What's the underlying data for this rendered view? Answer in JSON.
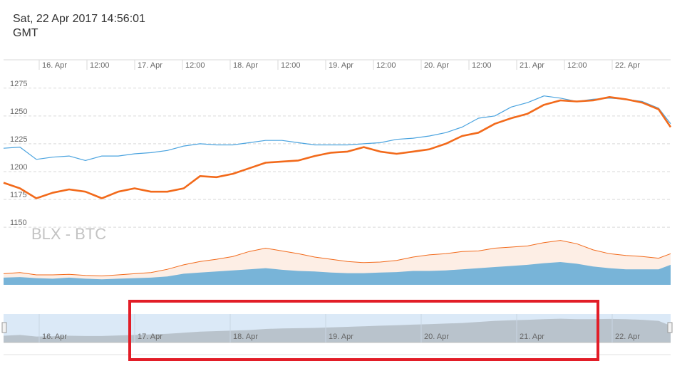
{
  "header": {
    "datetime": "Sat, 22 Apr 2017 14:56:01",
    "timezone": "GMT"
  },
  "colors": {
    "blx_line": "#f26a1b",
    "btc_line": "#4aa3df",
    "volume_orange_fill": "#fdeee5",
    "volume_orange_line": "#f26a1b",
    "volume_blue_fill": "#78b4d8",
    "navigator_fill": "#b9c3cc",
    "navigator_bg": "#dbe9f7",
    "highlight_box": "#e21d27",
    "grid": "#d9d9d9"
  },
  "chart_data": {
    "type": "line",
    "title": "BLX - BTC",
    "x_axis_labels": [
      "16. Apr",
      "12:00",
      "17. Apr",
      "12:00",
      "18. Apr",
      "12:00",
      "19. Apr",
      "12:00",
      "20. Apr",
      "12:00",
      "21. Apr",
      "12:00",
      "22. Apr"
    ],
    "navigator_labels": [
      "16. Apr",
      "17. Apr",
      "18. Apr",
      "19. Apr",
      "20. Apr",
      "21. Apr",
      "22. Apr"
    ],
    "y_ticks": [
      1150,
      1175,
      1200,
      1225,
      1250,
      1275
    ],
    "ylim": [
      1145,
      1287
    ],
    "x": [
      "2017-04-15 20:00",
      "2017-04-16 00:00",
      "2017-04-16 04:00",
      "2017-04-16 08:00",
      "2017-04-16 12:00",
      "2017-04-16 16:00",
      "2017-04-16 20:00",
      "2017-04-17 00:00",
      "2017-04-17 04:00",
      "2017-04-17 08:00",
      "2017-04-17 12:00",
      "2017-04-17 16:00",
      "2017-04-17 20:00",
      "2017-04-18 00:00",
      "2017-04-18 04:00",
      "2017-04-18 08:00",
      "2017-04-18 12:00",
      "2017-04-18 16:00",
      "2017-04-18 20:00",
      "2017-04-19 00:00",
      "2017-04-19 04:00",
      "2017-04-19 08:00",
      "2017-04-19 12:00",
      "2017-04-19 16:00",
      "2017-04-19 20:00",
      "2017-04-20 00:00",
      "2017-04-20 04:00",
      "2017-04-20 08:00",
      "2017-04-20 12:00",
      "2017-04-20 16:00",
      "2017-04-20 20:00",
      "2017-04-21 00:00",
      "2017-04-21 04:00",
      "2017-04-21 08:00",
      "2017-04-21 12:00",
      "2017-04-21 16:00",
      "2017-04-21 20:00",
      "2017-04-22 00:00",
      "2017-04-22 04:00",
      "2017-04-22 08:00",
      "2017-04-22 12:00",
      "2017-04-22 14:56"
    ],
    "series": [
      {
        "name": "BLX",
        "values": [
          1190,
          1185,
          1176,
          1181,
          1184,
          1182,
          1176,
          1182,
          1185,
          1182,
          1182,
          1185,
          1196,
          1195,
          1198,
          1203,
          1208,
          1209,
          1210,
          1214,
          1217,
          1218,
          1222,
          1218,
          1216,
          1218,
          1220,
          1225,
          1232,
          1235,
          1243,
          1248,
          1252,
          1260,
          1264,
          1263,
          1264,
          1267,
          1265,
          1262,
          1256,
          1240
        ]
      },
      {
        "name": "BTC",
        "values": [
          1221,
          1222,
          1211,
          1213,
          1214,
          1210,
          1214,
          1214,
          1216,
          1217,
          1219,
          1223,
          1225,
          1224,
          1224,
          1226,
          1228,
          1228,
          1226,
          1224,
          1224,
          1224,
          1225,
          1226,
          1229,
          1230,
          1232,
          1235,
          1240,
          1248,
          1250,
          1258,
          1262,
          1268,
          1266,
          1263,
          1265,
          1266,
          1265,
          1263,
          1257,
          1243
        ]
      }
    ],
    "volume_orange_rel": [
      0.2,
      0.22,
      0.18,
      0.18,
      0.19,
      0.17,
      0.16,
      0.18,
      0.2,
      0.22,
      0.28,
      0.36,
      0.42,
      0.46,
      0.51,
      0.6,
      0.66,
      0.61,
      0.56,
      0.5,
      0.46,
      0.42,
      0.4,
      0.41,
      0.44,
      0.5,
      0.54,
      0.56,
      0.6,
      0.61,
      0.66,
      0.68,
      0.7,
      0.76,
      0.8,
      0.74,
      0.63,
      0.56,
      0.53,
      0.51,
      0.48,
      0.56
    ],
    "volume_blue_rel": [
      0.13,
      0.14,
      0.12,
      0.11,
      0.13,
      0.11,
      0.1,
      0.11,
      0.12,
      0.13,
      0.15,
      0.2,
      0.22,
      0.24,
      0.26,
      0.28,
      0.3,
      0.27,
      0.25,
      0.24,
      0.22,
      0.21,
      0.21,
      0.22,
      0.23,
      0.25,
      0.25,
      0.26,
      0.28,
      0.3,
      0.32,
      0.34,
      0.36,
      0.39,
      0.41,
      0.38,
      0.33,
      0.3,
      0.28,
      0.28,
      0.28,
      0.36
    ],
    "navigator_rel": [
      0.25,
      0.28,
      0.22,
      0.23,
      0.25,
      0.24,
      0.24,
      0.26,
      0.28,
      0.3,
      0.32,
      0.36,
      0.4,
      0.42,
      0.44,
      0.46,
      0.5,
      0.52,
      0.53,
      0.54,
      0.56,
      0.58,
      0.6,
      0.62,
      0.64,
      0.66,
      0.68,
      0.7,
      0.72,
      0.76,
      0.8,
      0.82,
      0.84,
      0.86,
      0.88,
      0.86,
      0.86,
      0.87,
      0.86,
      0.84,
      0.8,
      0.62
    ],
    "grid": true,
    "highlight_box": true
  }
}
